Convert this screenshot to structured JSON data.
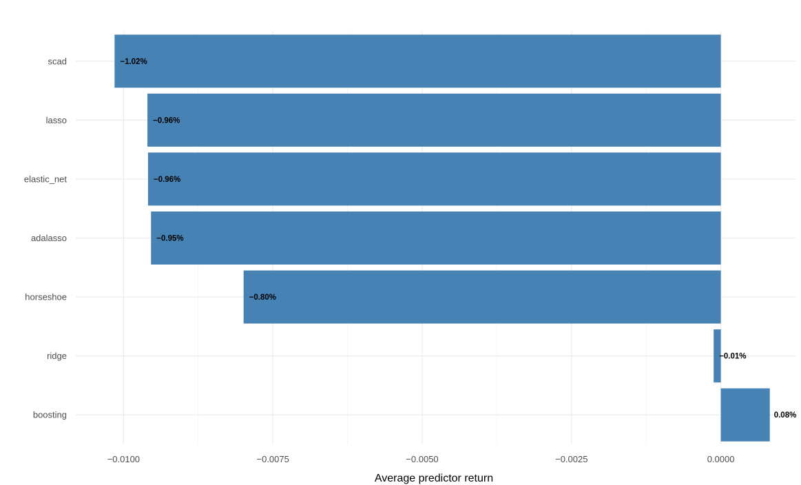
{
  "chart_data": {
    "type": "bar",
    "orientation": "horizontal",
    "title": "",
    "xlabel": "Average predictor return",
    "ylabel": "",
    "categories": [
      "scad",
      "lasso",
      "elastic_net",
      "adalasso",
      "horseshoe",
      "ridge",
      "boosting"
    ],
    "values": [
      -0.01015,
      -0.0096,
      -0.00959,
      -0.00954,
      -0.00799,
      -0.00012,
      0.00082
    ],
    "data_labels": [
      "−1.02%",
      "−0.96%",
      "−0.96%",
      "−0.95%",
      "−0.80%",
      "−0.01%",
      "0.08%"
    ],
    "x_ticks": [
      -0.01,
      -0.0075,
      -0.005,
      -0.0025,
      0.0
    ],
    "x_tick_labels": [
      "−0.0100",
      "−0.0075",
      "−0.0050",
      "−0.0025",
      "0.0000"
    ],
    "xlim": [
      -0.0108,
      0.00125
    ],
    "grid": true,
    "legend": "none",
    "bar_color": "#4682b4"
  }
}
